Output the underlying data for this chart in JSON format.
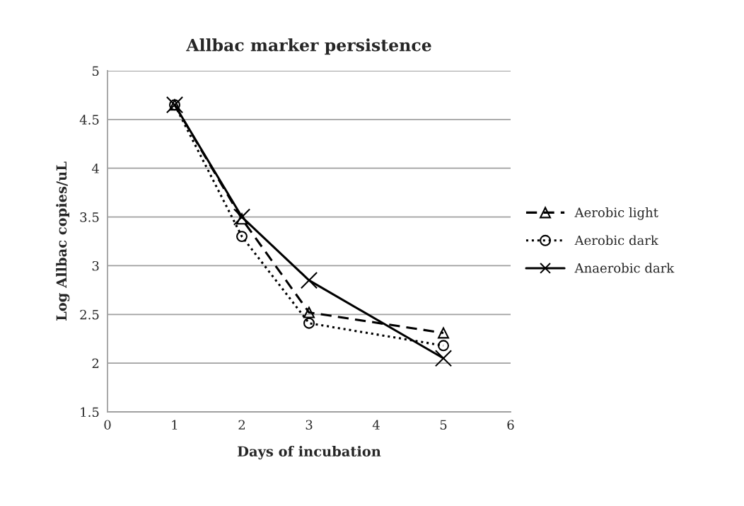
{
  "chart_data": {
    "type": "line",
    "title": "Allbac marker persistence",
    "xlabel": "Days of incubation",
    "ylabel": "Log Allbac copies/uL",
    "x": [
      1,
      2,
      3,
      5
    ],
    "series": [
      {
        "name": "Aerobic light",
        "color": "#000000",
        "values": [
          4.65,
          3.48,
          2.52,
          2.31
        ],
        "marker": "triangle",
        "line_style": "dashed"
      },
      {
        "name": "Aerobic dark",
        "color": "#000000",
        "values": [
          4.65,
          3.3,
          2.41,
          2.18
        ],
        "marker": "circle",
        "line_style": "dotted"
      },
      {
        "name": "Anaerobic dark",
        "color": "#000000",
        "values": [
          4.65,
          3.5,
          2.85,
          2.05
        ],
        "marker": "cross",
        "line_style": "solid"
      }
    ],
    "xlim": [
      0,
      6
    ],
    "xticks": [
      0,
      1,
      2,
      3,
      4,
      5,
      6
    ],
    "ylim": [
      1.5,
      5
    ],
    "yticks": [
      1.5,
      2,
      2.5,
      3,
      3.5,
      4,
      4.5,
      5
    ],
    "grid": "y",
    "legend": "right"
  }
}
